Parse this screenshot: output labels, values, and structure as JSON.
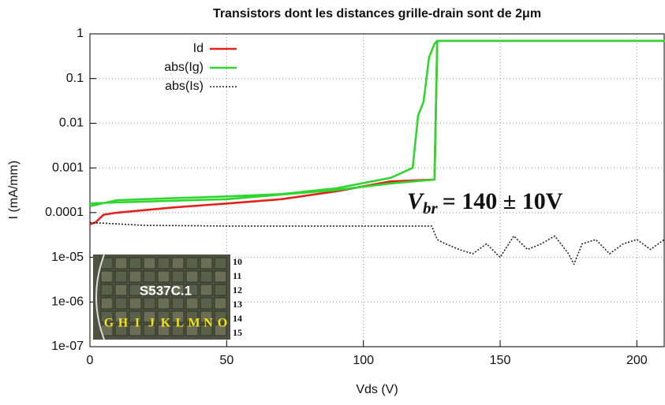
{
  "chart_data": {
    "type": "line",
    "title": "Transistors dont les distances grille-drain sont de 2μm",
    "x_label": "Vds (V)",
    "y_label": "I  (mA/mm)",
    "log_y": true,
    "grid": true,
    "legend": "top-left",
    "xlim": [
      0,
      210
    ],
    "xticks": [
      0,
      50,
      100,
      150,
      200
    ],
    "ylim": [
      1e-07,
      1
    ],
    "yticks": [
      1,
      0.1,
      0.01,
      0.001,
      0.0001,
      {
        "value": 1e-05,
        "label": "1e-05"
      },
      {
        "value": 1e-06,
        "label": "1e-06"
      },
      {
        "value": 1e-07,
        "label": "1e-07"
      }
    ],
    "series": [
      {
        "name": "Id",
        "color": "#e3221c",
        "style": "solid",
        "x": [
          0,
          2,
          5,
          10,
          30,
          50,
          70,
          90,
          110,
          126,
          127,
          210
        ],
        "values": [
          5.5e-05,
          6e-05,
          9e-05,
          0.0001,
          0.00013,
          0.00016,
          0.0002,
          0.0003,
          0.0005,
          0.00055,
          0.7,
          0.7
        ]
      },
      {
        "name": "abs(Ig)",
        "color": "#2fd62f",
        "style": "solid",
        "x": [
          0,
          10,
          30,
          50,
          70,
          90,
          110,
          118,
          120,
          122,
          124,
          126,
          127,
          210,
          127,
          126,
          110,
          90,
          50,
          10,
          0
        ],
        "values": [
          0.00014,
          0.00019,
          0.00021,
          0.00023,
          0.00026,
          0.00035,
          0.0006,
          0.001,
          0.015,
          0.03,
          0.3,
          0.6,
          0.7,
          0.7,
          0.7,
          0.00055,
          0.00045,
          0.00032,
          0.0002,
          0.00017,
          0.00016
        ]
      },
      {
        "name": "abs(Is)",
        "color": "#222222",
        "style": "dotted",
        "x": [
          0,
          20,
          50,
          100,
          125,
          127,
          130,
          135,
          140,
          145,
          150,
          155,
          160,
          165,
          170,
          175,
          177,
          180,
          185,
          190,
          195,
          200,
          205,
          210
        ],
        "values": [
          6e-05,
          5.2e-05,
          5e-05,
          5e-05,
          5e-05,
          2.5e-05,
          2e-05,
          1.5e-05,
          1.2e-05,
          2e-05,
          1e-05,
          3e-05,
          1.5e-05,
          2e-05,
          3e-05,
          1.2e-05,
          7e-06,
          2e-05,
          2.5e-05,
          1.2e-05,
          2e-05,
          2.5e-05,
          1.5e-05,
          2.5e-05
        ]
      }
    ],
    "annotation": {
      "symbol": "V",
      "subscript": "br",
      "text": "= 140 ± 10V"
    },
    "inset": {
      "label": "S537C.1",
      "rows": [
        "10",
        "11",
        "12",
        "13",
        "14",
        "15"
      ],
      "columns": [
        "G",
        "H",
        "I",
        "J",
        "K",
        "L",
        "M",
        "N",
        "O"
      ]
    }
  }
}
